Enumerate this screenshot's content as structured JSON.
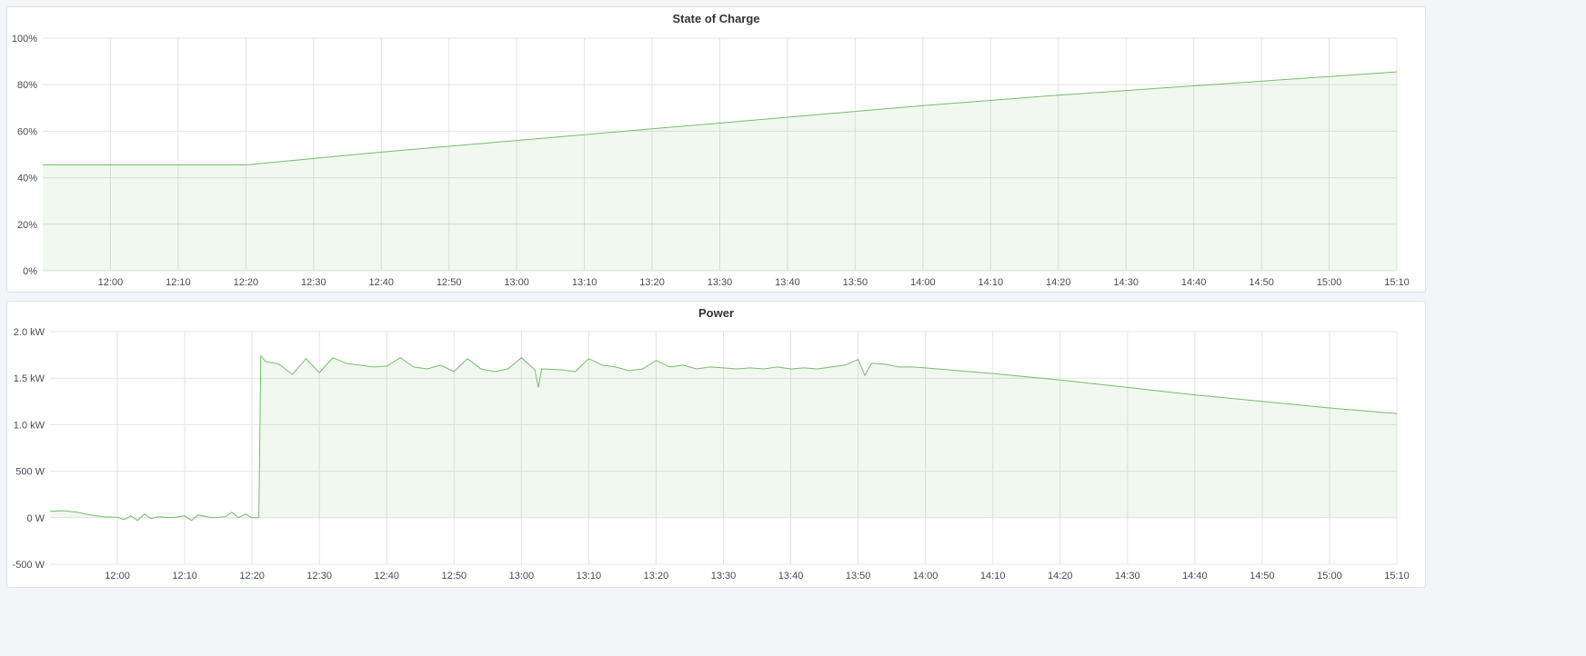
{
  "chart_data": [
    {
      "type": "area",
      "title": "State of Charge",
      "xlim": [
        "11:50",
        "15:10"
      ],
      "x_ticks": [
        "12:00",
        "12:10",
        "12:20",
        "12:30",
        "12:40",
        "12:50",
        "13:00",
        "13:10",
        "13:20",
        "13:30",
        "13:40",
        "13:50",
        "14:00",
        "14:10",
        "14:20",
        "14:30",
        "14:40",
        "14:50",
        "15:00",
        "15:10"
      ],
      "ylim": [
        0,
        100
      ],
      "y_ticks": [
        0,
        20,
        40,
        60,
        80,
        100
      ],
      "y_tick_labels": [
        "0%",
        "20%",
        "40%",
        "60%",
        "80%",
        "100%"
      ],
      "grid": true,
      "color": "#73bf69",
      "series": [
        {
          "points": [
            [
              "11:50",
              45.5
            ],
            [
              "12:20",
              45.5
            ],
            [
              "12:40",
              51
            ],
            [
              "13:00",
              56
            ],
            [
              "13:20",
              61
            ],
            [
              "13:40",
              66
            ],
            [
              "14:00",
              71
            ],
            [
              "14:20",
              75.5
            ],
            [
              "14:40",
              79.5
            ],
            [
              "15:00",
              83.5
            ],
            [
              "15:10",
              85.5
            ]
          ]
        }
      ]
    },
    {
      "type": "area",
      "title": "Power",
      "xlim": [
        "11:50",
        "15:10"
      ],
      "x_ticks": [
        "12:00",
        "12:10",
        "12:20",
        "12:30",
        "12:40",
        "12:50",
        "13:00",
        "13:10",
        "13:20",
        "13:30",
        "13:40",
        "13:50",
        "14:00",
        "14:10",
        "14:20",
        "14:30",
        "14:40",
        "14:50",
        "15:00",
        "15:10"
      ],
      "ylim": [
        -500,
        2000
      ],
      "y_ticks": [
        -500,
        0,
        500,
        1000,
        1500,
        2000
      ],
      "y_tick_labels": [
        "-500 W",
        "0 W",
        "500 W",
        "1.0 kW",
        "1.5 kW",
        "2.0 kW"
      ],
      "grid": true,
      "color": "#73bf69",
      "series": [
        {
          "points": [
            [
              "11:50",
              70
            ],
            [
              "11:52",
              75
            ],
            [
              "11:54",
              60
            ],
            [
              "11:56",
              30
            ],
            [
              "11:58",
              10
            ],
            [
              "12:00",
              5
            ],
            [
              "12:01",
              -20
            ],
            [
              "12:02",
              20
            ],
            [
              "12:03",
              -30
            ],
            [
              "12:04",
              40
            ],
            [
              "12:05",
              -10
            ],
            [
              "12:06",
              10
            ],
            [
              "12:08",
              0
            ],
            [
              "12:10",
              20
            ],
            [
              "12:11",
              -30
            ],
            [
              "12:12",
              30
            ],
            [
              "12:14",
              0
            ],
            [
              "12:16",
              10
            ],
            [
              "12:17",
              60
            ],
            [
              "12:18",
              0
            ],
            [
              "12:19",
              40
            ],
            [
              "12:20",
              0
            ],
            [
              "12:21",
              0
            ],
            [
              "12:21.3",
              1740
            ],
            [
              "12:22",
              1680
            ],
            [
              "12:24",
              1650
            ],
            [
              "12:26",
              1540
            ],
            [
              "12:28",
              1710
            ],
            [
              "12:30",
              1560
            ],
            [
              "12:32",
              1720
            ],
            [
              "12:34",
              1660
            ],
            [
              "12:36",
              1640
            ],
            [
              "12:38",
              1620
            ],
            [
              "12:40",
              1630
            ],
            [
              "12:42",
              1720
            ],
            [
              "12:44",
              1620
            ],
            [
              "12:46",
              1600
            ],
            [
              "12:48",
              1640
            ],
            [
              "12:50",
              1570
            ],
            [
              "12:52",
              1710
            ],
            [
              "12:54",
              1600
            ],
            [
              "12:56",
              1570
            ],
            [
              "12:58",
              1600
            ],
            [
              "13:00",
              1720
            ],
            [
              "13:02",
              1590
            ],
            [
              "13:02.5",
              1400
            ],
            [
              "13:03",
              1600
            ],
            [
              "13:06",
              1590
            ],
            [
              "13:08",
              1570
            ],
            [
              "13:10",
              1710
            ],
            [
              "13:12",
              1640
            ],
            [
              "13:14",
              1620
            ],
            [
              "13:16",
              1580
            ],
            [
              "13:18",
              1600
            ],
            [
              "13:20",
              1690
            ],
            [
              "13:22",
              1620
            ],
            [
              "13:24",
              1640
            ],
            [
              "13:26",
              1600
            ],
            [
              "13:28",
              1620
            ],
            [
              "13:30",
              1610
            ],
            [
              "13:32",
              1600
            ],
            [
              "13:34",
              1610
            ],
            [
              "13:36",
              1600
            ],
            [
              "13:38",
              1620
            ],
            [
              "13:40",
              1600
            ],
            [
              "13:42",
              1610
            ],
            [
              "13:44",
              1600
            ],
            [
              "13:46",
              1620
            ],
            [
              "13:48",
              1640
            ],
            [
              "13:50",
              1700
            ],
            [
              "13:51",
              1530
            ],
            [
              "13:52",
              1660
            ],
            [
              "13:54",
              1650
            ],
            [
              "13:56",
              1620
            ],
            [
              "13:58",
              1620
            ],
            [
              "14:00",
              1610
            ],
            [
              "14:10",
              1550
            ],
            [
              "14:20",
              1480
            ],
            [
              "14:30",
              1400
            ],
            [
              "14:40",
              1320
            ],
            [
              "14:50",
              1250
            ],
            [
              "15:00",
              1180
            ],
            [
              "15:10",
              1120
            ]
          ]
        }
      ]
    }
  ]
}
